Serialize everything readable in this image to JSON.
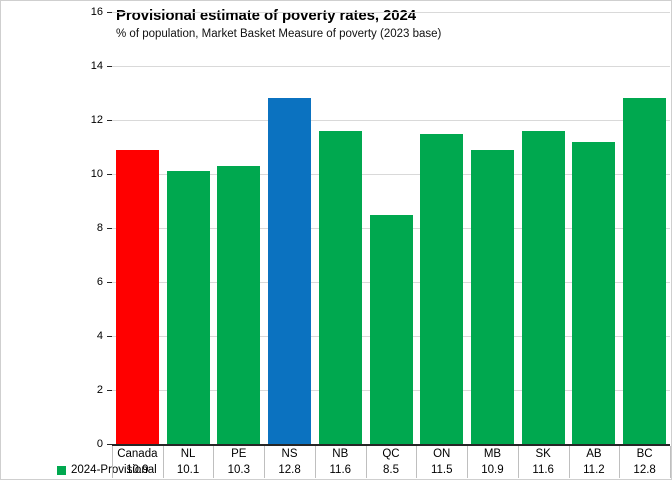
{
  "chart_data": {
    "type": "bar",
    "title": "Provisional estimate of poverty rates, 2024",
    "subtitle": "% of population, Market Basket Measure of poverty (2023 base)",
    "categories": [
      "Canada",
      "NL",
      "PE",
      "NS",
      "NB",
      "QC",
      "ON",
      "MB",
      "SK",
      "AB",
      "BC"
    ],
    "series": [
      {
        "name": "2024-Provisional",
        "color": "#00a84f",
        "values": [
          10.9,
          10.1,
          10.3,
          12.8,
          11.6,
          8.5,
          11.5,
          10.9,
          11.6,
          11.2,
          12.8
        ]
      }
    ],
    "bar_colors": [
      "#ff0000",
      "#00a84f",
      "#00a84f",
      "#0b72c0",
      "#00a84f",
      "#00a84f",
      "#00a84f",
      "#00a84f",
      "#00a84f",
      "#00a84f",
      "#00a84f"
    ],
    "yticks": [
      0,
      2,
      4,
      6,
      8,
      10,
      12,
      14,
      16
    ],
    "ylim": [
      0,
      16
    ],
    "grid": true,
    "legend_position": "bottom-left",
    "show_data_table": true,
    "gridline_color": "#d9d9d9",
    "axis_color": "#262626",
    "table_border_color": "#bfbfbf"
  }
}
